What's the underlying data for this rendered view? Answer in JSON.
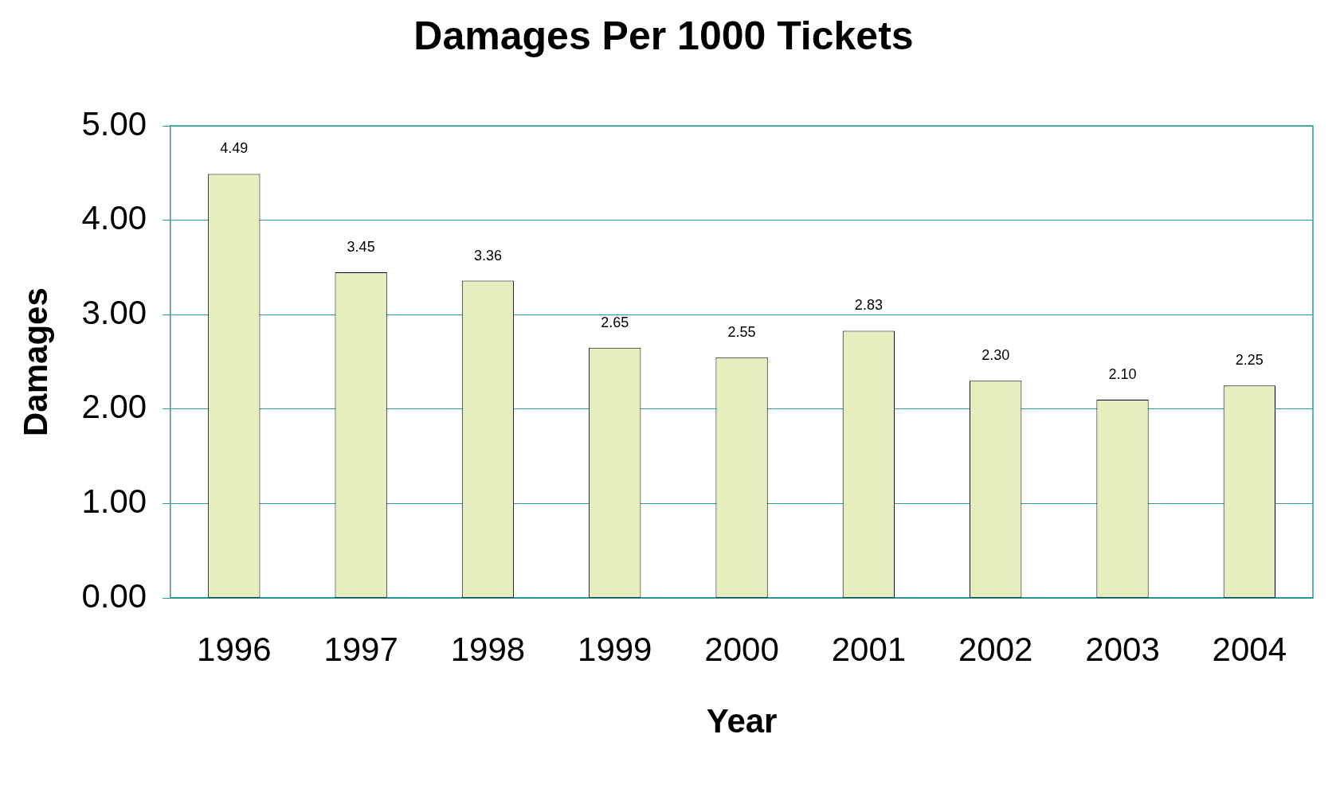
{
  "chart_data": {
    "type": "bar",
    "title": "Damages Per 1000 Tickets",
    "xlabel": "Year",
    "ylabel": "Damages",
    "categories": [
      "1996",
      "1997",
      "1998",
      "1999",
      "2000",
      "2001",
      "2002",
      "2003",
      "2004"
    ],
    "series": [
      {
        "color": "#e6eec0",
        "values": [
          4.49,
          3.45,
          3.36,
          2.65,
          2.55,
          2.83,
          2.3,
          2.1,
          2.25
        ],
        "value_labels": [
          "4.49",
          "3.45",
          "3.36",
          "2.65",
          "2.55",
          "2.83",
          "2.30",
          "2.10",
          "2.25"
        ]
      }
    ],
    "ylim": [
      0,
      5
    ],
    "yticks": [
      {
        "value": 0,
        "label": "0.00"
      },
      {
        "value": 1,
        "label": "1.00"
      },
      {
        "value": 2,
        "label": "2.00"
      },
      {
        "value": 3,
        "label": "3.00"
      },
      {
        "value": 4,
        "label": "4.00"
      },
      {
        "value": 5,
        "label": "5.00"
      }
    ],
    "grid": "y",
    "legend": false
  }
}
